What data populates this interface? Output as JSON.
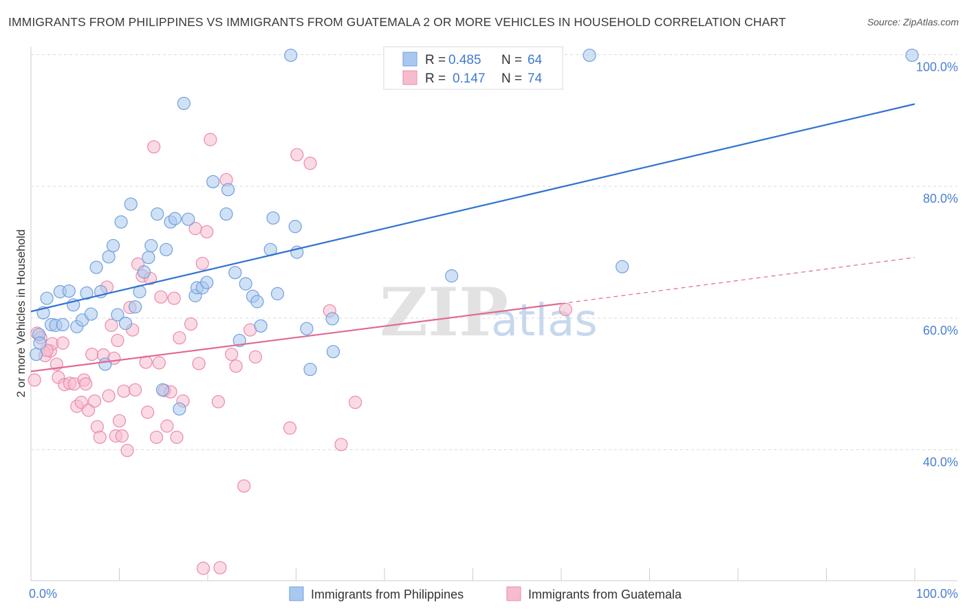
{
  "title": "IMMIGRANTS FROM PHILIPPINES VS IMMIGRANTS FROM GUATEMALA 2 OR MORE VEHICLES IN HOUSEHOLD CORRELATION CHART",
  "source": "Source: ZipAtlas.com",
  "watermark": {
    "zip": "ZIP",
    "atlas": "atlas"
  },
  "colors": {
    "blue_fill": "#a9c8ef",
    "blue_stroke": "#6f9fdc",
    "blue_line": "#2f72d0",
    "pink_fill": "#f6bccd",
    "pink_stroke": "#ea8aa8",
    "pink_line": "#e06890",
    "axis_text": "#4a7fd0",
    "grid": "#d9d9d9"
  },
  "legend": {
    "rows": [
      {
        "r_label": "R =",
        "r_value": "0.485",
        "n_label": "N =",
        "n_value": "64"
      },
      {
        "r_label": "R =",
        "r_value": "0.147",
        "n_label": "N =",
        "n_value": "74"
      }
    ]
  },
  "chart_data": {
    "type": "scatter",
    "ylabel": "2 or more Vehicles in Household",
    "xlabel": "",
    "xlim": [
      0,
      100
    ],
    "ylim": [
      20,
      103
    ],
    "x_tick_labels": [
      "0.0%",
      "100.0%"
    ],
    "y_ticks": [
      40,
      60,
      80,
      100
    ],
    "y_tick_labels": [
      "40.0%",
      "60.0%",
      "80.0%",
      "100.0%"
    ],
    "grid": true,
    "legend_position": "top-center",
    "series": [
      {
        "name": "Immigrants from Philippines",
        "color": "blue",
        "trend": {
          "x": [
            0,
            100
          ],
          "y": [
            61.0,
            92.5
          ],
          "dashed_extension": null
        },
        "points": [
          [
            0.6,
            54.5
          ],
          [
            0.9,
            57.5
          ],
          [
            1.4,
            60.8
          ],
          [
            1.8,
            63.0
          ],
          [
            2.3,
            59.0
          ],
          [
            2.8,
            58.9
          ],
          [
            3.3,
            64.0
          ],
          [
            3.6,
            59.0
          ],
          [
            4.3,
            64.1
          ],
          [
            4.8,
            62.0
          ],
          [
            5.2,
            58.7
          ],
          [
            5.8,
            59.7
          ],
          [
            6.3,
            63.8
          ],
          [
            6.8,
            60.6
          ],
          [
            7.4,
            67.7
          ],
          [
            7.9,
            64.0
          ],
          [
            8.4,
            53.0
          ],
          [
            8.8,
            69.3
          ],
          [
            9.3,
            71.0
          ],
          [
            9.8,
            60.5
          ],
          [
            10.2,
            74.6
          ],
          [
            10.7,
            59.2
          ],
          [
            11.3,
            77.3
          ],
          [
            11.8,
            61.7
          ],
          [
            12.3,
            64.0
          ],
          [
            12.8,
            67.0
          ],
          [
            13.3,
            69.2
          ],
          [
            13.6,
            71.0
          ],
          [
            14.3,
            75.8
          ],
          [
            14.9,
            49.1
          ],
          [
            15.3,
            70.4
          ],
          [
            15.8,
            74.6
          ],
          [
            16.3,
            75.1
          ],
          [
            16.8,
            46.2
          ],
          [
            17.3,
            92.6
          ],
          [
            17.8,
            75.0
          ],
          [
            18.6,
            63.4
          ],
          [
            18.8,
            64.6
          ],
          [
            19.4,
            64.6
          ],
          [
            19.9,
            65.4
          ],
          [
            20.6,
            80.7
          ],
          [
            22.1,
            75.8
          ],
          [
            22.3,
            79.5
          ],
          [
            23.1,
            66.9
          ],
          [
            23.6,
            56.6
          ],
          [
            24.3,
            65.2
          ],
          [
            25.1,
            63.3
          ],
          [
            25.6,
            62.5
          ],
          [
            26.0,
            58.8
          ],
          [
            27.1,
            70.4
          ],
          [
            27.4,
            75.2
          ],
          [
            27.9,
            63.7
          ],
          [
            29.4,
            99.9
          ],
          [
            29.9,
            73.9
          ],
          [
            30.1,
            70.0
          ],
          [
            31.2,
            58.4
          ],
          [
            31.6,
            52.2
          ],
          [
            34.1,
            59.9
          ],
          [
            34.2,
            54.9
          ],
          [
            47.6,
            66.4
          ],
          [
            63.2,
            99.9
          ],
          [
            66.9,
            67.8
          ],
          [
            99.7,
            99.9
          ],
          [
            1.0,
            56.2
          ]
        ]
      },
      {
        "name": "Immigrants from Guatemala",
        "color": "pink",
        "trend": {
          "x": [
            0,
            60
          ],
          "y": [
            51.9,
            62.2
          ],
          "dashed_extension": {
            "x": [
              60,
              100
            ],
            "y": [
              62.2,
              69.2
            ]
          }
        },
        "points": [
          [
            0.4,
            50.6
          ],
          [
            0.7,
            57.7
          ],
          [
            1.1,
            57.0
          ],
          [
            1.6,
            54.3
          ],
          [
            2.2,
            55.0
          ],
          [
            2.4,
            56.1
          ],
          [
            2.9,
            53.0
          ],
          [
            3.1,
            51.0
          ],
          [
            3.6,
            56.2
          ],
          [
            3.8,
            49.9
          ],
          [
            4.4,
            50.1
          ],
          [
            4.9,
            50.0
          ],
          [
            5.2,
            46.6
          ],
          [
            5.7,
            47.2
          ],
          [
            6.0,
            50.6
          ],
          [
            6.2,
            50.0
          ],
          [
            6.5,
            46.0
          ],
          [
            6.9,
            54.5
          ],
          [
            7.2,
            47.4
          ],
          [
            7.5,
            43.5
          ],
          [
            7.8,
            41.9
          ],
          [
            8.2,
            54.4
          ],
          [
            8.6,
            64.7
          ],
          [
            8.8,
            48.2
          ],
          [
            9.1,
            58.9
          ],
          [
            9.4,
            53.9
          ],
          [
            9.6,
            42.1
          ],
          [
            9.8,
            56.6
          ],
          [
            10.0,
            44.4
          ],
          [
            10.3,
            42.1
          ],
          [
            10.5,
            48.9
          ],
          [
            10.9,
            39.9
          ],
          [
            11.2,
            61.6
          ],
          [
            11.5,
            58.2
          ],
          [
            11.8,
            49.1
          ],
          [
            12.1,
            68.2
          ],
          [
            12.6,
            66.4
          ],
          [
            13.0,
            53.3
          ],
          [
            13.2,
            45.7
          ],
          [
            13.5,
            66.0
          ],
          [
            13.9,
            86.0
          ],
          [
            14.2,
            41.9
          ],
          [
            14.5,
            53.2
          ],
          [
            14.7,
            63.2
          ],
          [
            15.1,
            49.0
          ],
          [
            15.4,
            43.6
          ],
          [
            15.8,
            48.8
          ],
          [
            16.2,
            63.0
          ],
          [
            16.5,
            41.9
          ],
          [
            16.8,
            57.0
          ],
          [
            17.2,
            47.4
          ],
          [
            18.1,
            59.1
          ],
          [
            18.6,
            73.6
          ],
          [
            19.0,
            53.1
          ],
          [
            19.4,
            68.3
          ],
          [
            19.9,
            73.1
          ],
          [
            20.3,
            87.1
          ],
          [
            21.2,
            47.3
          ],
          [
            22.1,
            81.0
          ],
          [
            22.7,
            54.5
          ],
          [
            23.2,
            52.7
          ],
          [
            24.1,
            34.5
          ],
          [
            24.8,
            58.2
          ],
          [
            25.4,
            54.1
          ],
          [
            29.3,
            43.3
          ],
          [
            30.1,
            84.8
          ],
          [
            31.6,
            83.5
          ],
          [
            33.8,
            61.1
          ],
          [
            35.1,
            40.8
          ],
          [
            36.7,
            47.2
          ],
          [
            60.5,
            61.3
          ],
          [
            19.5,
            22.0
          ],
          [
            21.4,
            22.1
          ],
          [
            1.8,
            55.1
          ]
        ]
      }
    ]
  },
  "bottom_legend": {
    "items": [
      "Immigrants from Philippines",
      "Immigrants from Guatemala"
    ]
  }
}
